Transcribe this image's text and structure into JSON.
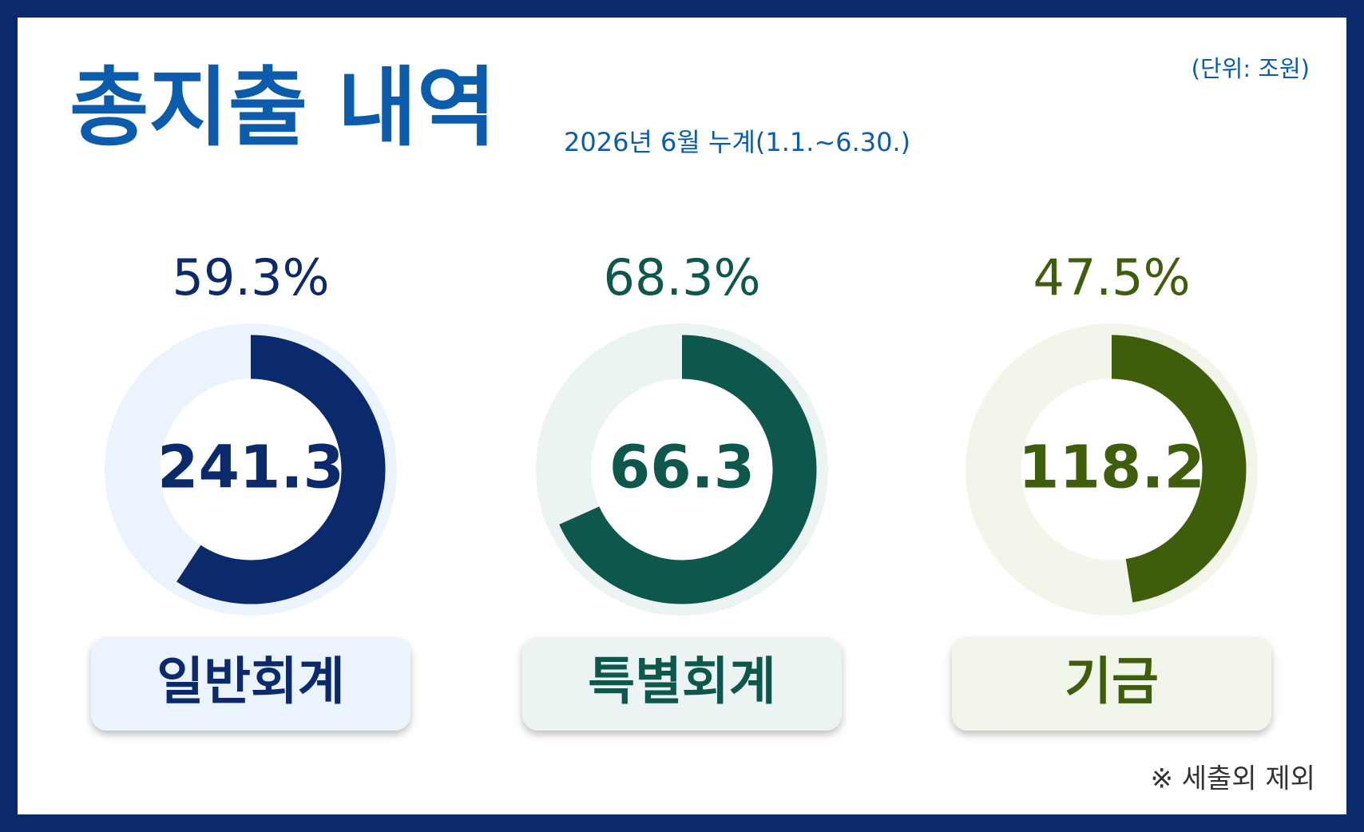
{
  "header": {
    "title": "총지출 내역",
    "subtitle": "2026년 6월 누계(1.1.~6.30.)",
    "unit": "(단위: 조원)",
    "note": "※ 세출외 제외"
  },
  "chart_data": [
    {
      "type": "donut",
      "title": "일반회계",
      "values": [
        59.3
      ],
      "value_labels": [
        "59.3%"
      ],
      "amount": 241.3,
      "ylim": [
        0,
        100
      ],
      "color": "#0b2a6b",
      "track_color": "#ebf3fc"
    },
    {
      "type": "donut",
      "title": "특별회계",
      "values": [
        68.3
      ],
      "value_labels": [
        "68.3%"
      ],
      "amount": 66.3,
      "ylim": [
        0,
        100
      ],
      "color": "#0e574d",
      "track_color": "#ebf4f3"
    },
    {
      "type": "donut",
      "title": "기금",
      "values": [
        47.5
      ],
      "value_labels": [
        "47.5%"
      ],
      "amount": 118.2,
      "ylim": [
        0,
        100
      ],
      "color": "#3e5e0c",
      "track_color": "#f2f6ea"
    }
  ]
}
